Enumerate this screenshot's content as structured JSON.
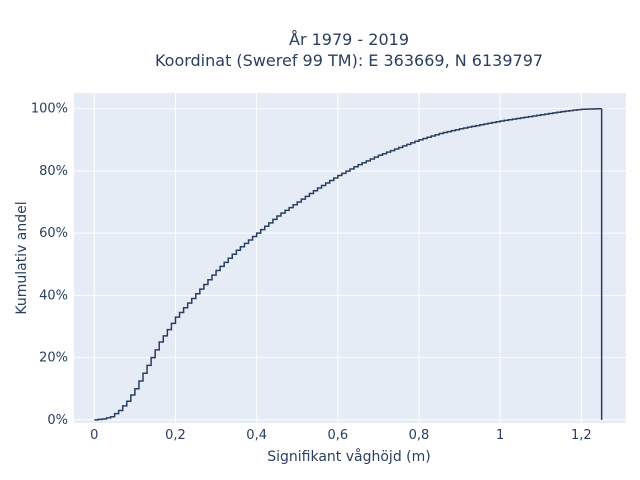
{
  "chart_data": {
    "type": "line",
    "subtype": "cumulative-step",
    "title": "År 1979 - 2019",
    "subtitle": "Koordinat (Sweref 99 TM): E 363669, N 6139797",
    "xlabel": "Signifikant våghöjd (m)",
    "ylabel": "Kumulativ andel",
    "xlim": [
      -0.05,
      1.31
    ],
    "ylim": [
      -0.01,
      1.05
    ],
    "x_ticks": [
      0,
      0.2,
      0.4,
      0.6,
      0.8,
      1.0,
      1.2
    ],
    "x_tick_labels": [
      "0",
      "0,2",
      "0,4",
      "0,6",
      "0,8",
      "1",
      "1,2"
    ],
    "y_ticks": [
      0,
      0.2,
      0.4,
      0.6,
      0.8,
      1.0
    ],
    "y_tick_labels": [
      "0%",
      "20%",
      "40%",
      "60%",
      "80%",
      "100%"
    ],
    "grid": true,
    "colors": {
      "plot_bg": "#e5ecf6",
      "grid": "#ffffff",
      "line": "#2a3f5f",
      "text": "#2a3f5f"
    },
    "series": [
      {
        "x": [
          0.0,
          0.02,
          0.04,
          0.06,
          0.08,
          0.1,
          0.12,
          0.14,
          0.16,
          0.18,
          0.2,
          0.22,
          0.24,
          0.26,
          0.28,
          0.3,
          0.35,
          0.4,
          0.45,
          0.5,
          0.55,
          0.6,
          0.65,
          0.7,
          0.75,
          0.8,
          0.85,
          0.9,
          0.95,
          1.0,
          1.05,
          1.1,
          1.15,
          1.2,
          1.25
        ],
        "y": [
          0.0,
          0.003,
          0.01,
          0.03,
          0.06,
          0.1,
          0.15,
          0.2,
          0.25,
          0.29,
          0.33,
          0.36,
          0.39,
          0.42,
          0.45,
          0.48,
          0.545,
          0.6,
          0.655,
          0.7,
          0.745,
          0.785,
          0.82,
          0.85,
          0.875,
          0.9,
          0.92,
          0.935,
          0.948,
          0.96,
          0.97,
          0.98,
          0.99,
          0.998,
          1.0
        ]
      }
    ]
  }
}
